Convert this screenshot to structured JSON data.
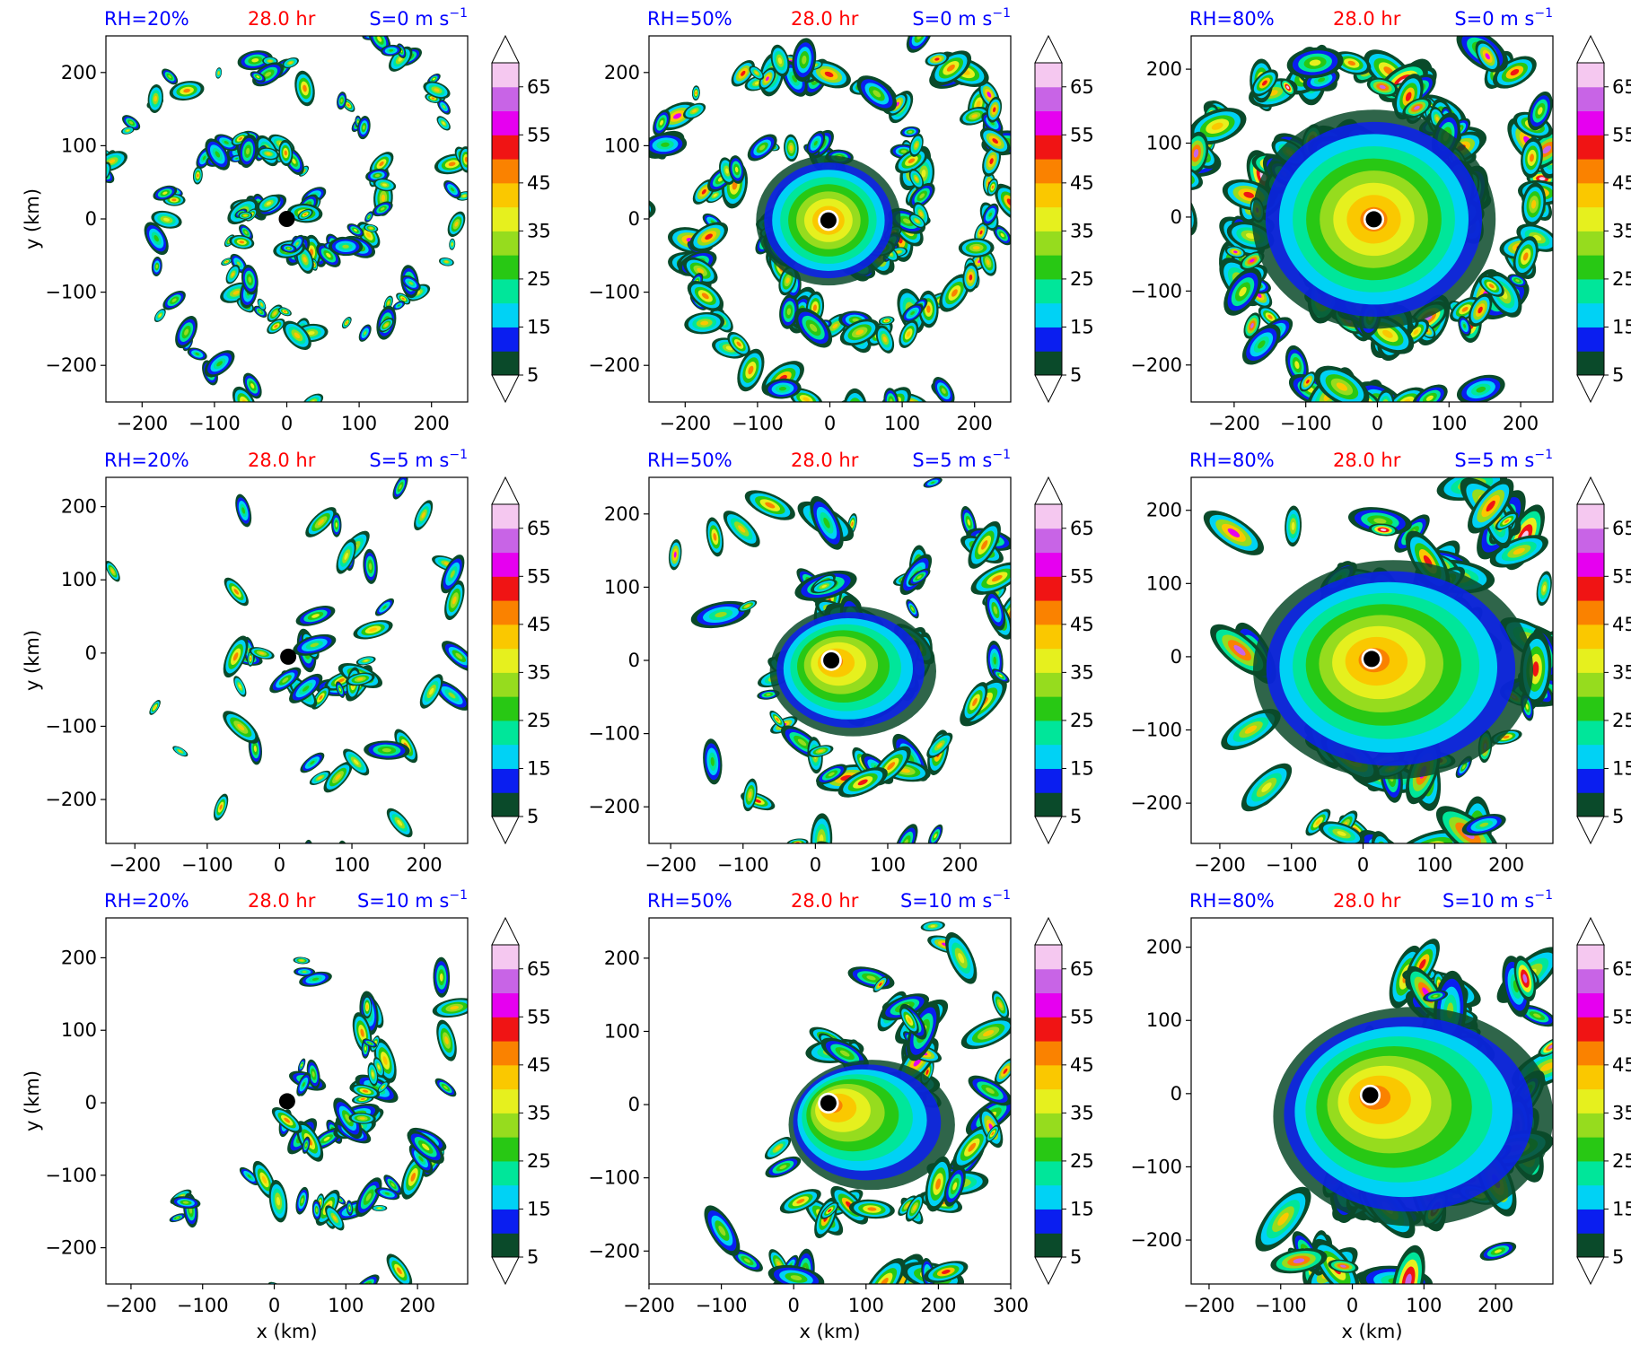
{
  "figure": {
    "rows": 3,
    "cols": 3
  },
  "time_label": "28.0 hr",
  "colorbar": {
    "levels": [
      5,
      10,
      15,
      20,
      25,
      30,
      35,
      40,
      45,
      50,
      55,
      60,
      65,
      70
    ],
    "tick_labels": [
      "5",
      "15",
      "25",
      "35",
      "45",
      "55",
      "65"
    ],
    "colors": [
      "#0a4a2a",
      "#0a1ef0",
      "#00d2f5",
      "#00e69a",
      "#28c814",
      "#96dc1e",
      "#e6f01e",
      "#fac800",
      "#fa8200",
      "#f01414",
      "#e600f0",
      "#c864e6",
      "#f5c8f0"
    ],
    "extend": "both"
  },
  "center_marker_color": "#000000",
  "colors": {
    "rh_label": "#0000ff",
    "time_label": "#ff0000",
    "shear_label": "#0000ff"
  },
  "chart_data": [
    {
      "type": "contourf",
      "row": 0,
      "col": 0,
      "rh_label": "RH=20%",
      "time_label": "28.0 hr",
      "shear_label": "S=0 m s",
      "shear_unit_exp": "−1",
      "xlabel": "",
      "ylabel": "y (km)",
      "xlim": [
        -250,
        250
      ],
      "ylim": [
        -250,
        250
      ],
      "xticks": [
        -200,
        -100,
        0,
        100,
        200
      ],
      "yticks": [
        -200,
        -100,
        0,
        100,
        200
      ],
      "center": [
        0,
        0
      ],
      "intensity": 0.2,
      "shear": 0
    },
    {
      "type": "contourf",
      "row": 0,
      "col": 1,
      "rh_label": "RH=50%",
      "time_label": "28.0 hr",
      "shear_label": "S=0 m s",
      "shear_unit_exp": "−1",
      "xlabel": "",
      "ylabel": "",
      "xlim": [
        -250,
        250
      ],
      "ylim": [
        -250,
        250
      ],
      "xticks": [
        -200,
        -100,
        0,
        100,
        200
      ],
      "yticks": [
        -200,
        -100,
        0,
        100,
        200
      ],
      "center": [
        -2,
        -2
      ],
      "intensity": 0.5,
      "shear": 0
    },
    {
      "type": "contourf",
      "row": 0,
      "col": 2,
      "rh_label": "RH=80%",
      "time_label": "28.0 hr",
      "shear_label": "S=0 m s",
      "shear_unit_exp": "−1",
      "xlabel": "",
      "ylabel": "",
      "xlim": [
        -260,
        245
      ],
      "ylim": [
        -250,
        245
      ],
      "xticks": [
        -200,
        -100,
        0,
        100,
        200
      ],
      "yticks": [
        -200,
        -100,
        0,
        100,
        200
      ],
      "center": [
        -5,
        -3
      ],
      "intensity": 0.8,
      "shear": 0
    },
    {
      "type": "contourf",
      "row": 1,
      "col": 0,
      "rh_label": "RH=20%",
      "time_label": "28.0 hr",
      "shear_label": "S=5 m s",
      "shear_unit_exp": "−1",
      "xlabel": "",
      "ylabel": "y (km)",
      "xlim": [
        -240,
        260
      ],
      "ylim": [
        -260,
        240
      ],
      "xticks": [
        -200,
        -100,
        0,
        100,
        200
      ],
      "yticks": [
        -200,
        -100,
        0,
        100,
        200
      ],
      "center": [
        12,
        -5
      ],
      "intensity": 0.2,
      "shear": 5
    },
    {
      "type": "contourf",
      "row": 1,
      "col": 1,
      "rh_label": "RH=50%",
      "time_label": "28.0 hr",
      "shear_label": "S=5 m s",
      "shear_unit_exp": "−1",
      "xlabel": "",
      "ylabel": "",
      "xlim": [
        -230,
        270
      ],
      "ylim": [
        -250,
        250
      ],
      "xticks": [
        -200,
        -100,
        0,
        100,
        200
      ],
      "yticks": [
        -200,
        -100,
        0,
        100,
        200
      ],
      "center": [
        22,
        0
      ],
      "intensity": 0.5,
      "shear": 5
    },
    {
      "type": "contourf",
      "row": 1,
      "col": 2,
      "rh_label": "RH=80%",
      "time_label": "28.0 hr",
      "shear_label": "S=5 m s",
      "shear_unit_exp": "−1",
      "xlabel": "",
      "ylabel": "",
      "xlim": [
        -240,
        265
      ],
      "ylim": [
        -255,
        245
      ],
      "xticks": [
        -200,
        -100,
        0,
        100,
        200
      ],
      "yticks": [
        -200,
        -100,
        0,
        100,
        200
      ],
      "center": [
        12,
        -3
      ],
      "intensity": 0.8,
      "shear": 5
    },
    {
      "type": "contourf",
      "row": 2,
      "col": 0,
      "rh_label": "RH=20%",
      "time_label": "28.0 hr",
      "shear_label": "S=10 m s",
      "shear_unit_exp": "−1",
      "xlabel": "x (km)",
      "ylabel": "y (km)",
      "xlim": [
        -235,
        270
      ],
      "ylim": [
        -250,
        255
      ],
      "xticks": [
        -200,
        -100,
        0,
        100,
        200
      ],
      "yticks": [
        -200,
        -100,
        0,
        100,
        200
      ],
      "center": [
        18,
        2
      ],
      "intensity": 0.2,
      "shear": 10
    },
    {
      "type": "contourf",
      "row": 2,
      "col": 1,
      "rh_label": "RH=50%",
      "time_label": "28.0 hr",
      "shear_label": "S=10 m s",
      "shear_unit_exp": "−1",
      "xlabel": "x (km)",
      "ylabel": "",
      "xlim": [
        -200,
        300
      ],
      "ylim": [
        -245,
        255
      ],
      "xticks": [
        -200,
        -100,
        0,
        100,
        200,
        300
      ],
      "yticks": [
        -200,
        -100,
        0,
        100,
        200
      ],
      "center": [
        48,
        2
      ],
      "intensity": 0.5,
      "shear": 10
    },
    {
      "type": "contourf",
      "row": 2,
      "col": 2,
      "rh_label": "RH=80%",
      "time_label": "28.0 hr",
      "shear_label": "S=10 m s",
      "shear_unit_exp": "−1",
      "xlabel": "x (km)",
      "ylabel": "",
      "xlim": [
        -225,
        280
      ],
      "ylim": [
        -260,
        240
      ],
      "xticks": [
        -200,
        -100,
        0,
        100,
        200
      ],
      "yticks": [
        -200,
        -100,
        0,
        100,
        200
      ],
      "center": [
        25,
        -2
      ],
      "intensity": 0.8,
      "shear": 10
    }
  ]
}
